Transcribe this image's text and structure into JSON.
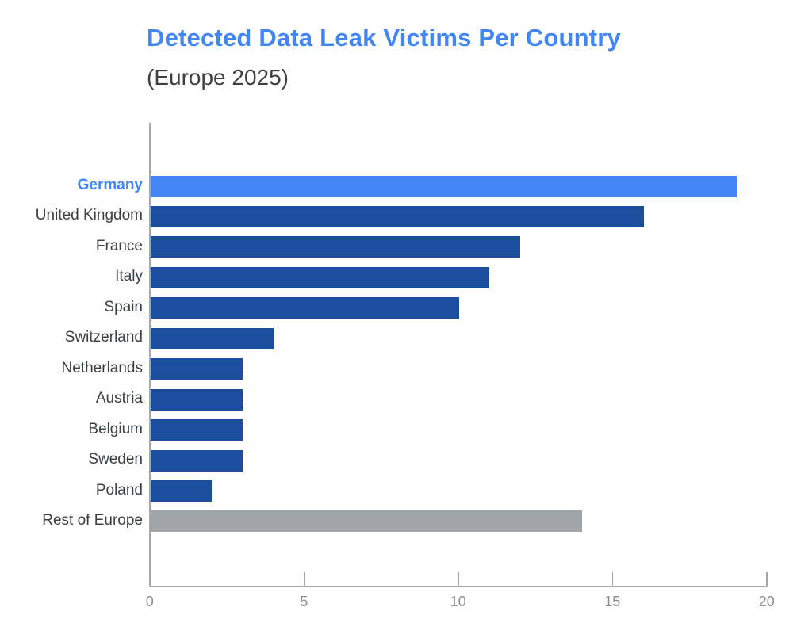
{
  "header": {
    "title": "Detected Data Leak Victims Per Country",
    "subtitle": "(Europe 2025)"
  },
  "colors": {
    "title": "#4285f4",
    "subtitle": "#3c4043",
    "bar_normal": "#1b4f9e",
    "bar_highlight": "#4285f4",
    "bar_muted": "#a1a4aa",
    "label_normal": "#3c4043",
    "label_highlight": "#4285f4",
    "axis": "#a6a6a6",
    "tick_label": "#8a8f94"
  },
  "chart_data": {
    "type": "bar",
    "orientation": "horizontal",
    "title": "Detected Data Leak Victims Per Country",
    "subtitle": "(Europe 2025)",
    "categories": [
      "Germany",
      "United Kingdom",
      "France",
      "Italy",
      "Spain",
      "Switzerland",
      "Netherlands",
      "Austria",
      "Belgium",
      "Sweden",
      "Poland",
      "Rest of Europe"
    ],
    "values": [
      19,
      16,
      12,
      11,
      10,
      4,
      3,
      3,
      3,
      3,
      2,
      14
    ],
    "bar_styles": [
      "highlight",
      "normal",
      "normal",
      "normal",
      "normal",
      "normal",
      "normal",
      "normal",
      "normal",
      "normal",
      "normal",
      "muted"
    ],
    "xlabel": "",
    "ylabel": "",
    "xlim": [
      0,
      20
    ],
    "xticks": [
      0,
      5,
      10,
      15,
      20
    ],
    "grid": false,
    "legend": false,
    "value_labels": false
  }
}
